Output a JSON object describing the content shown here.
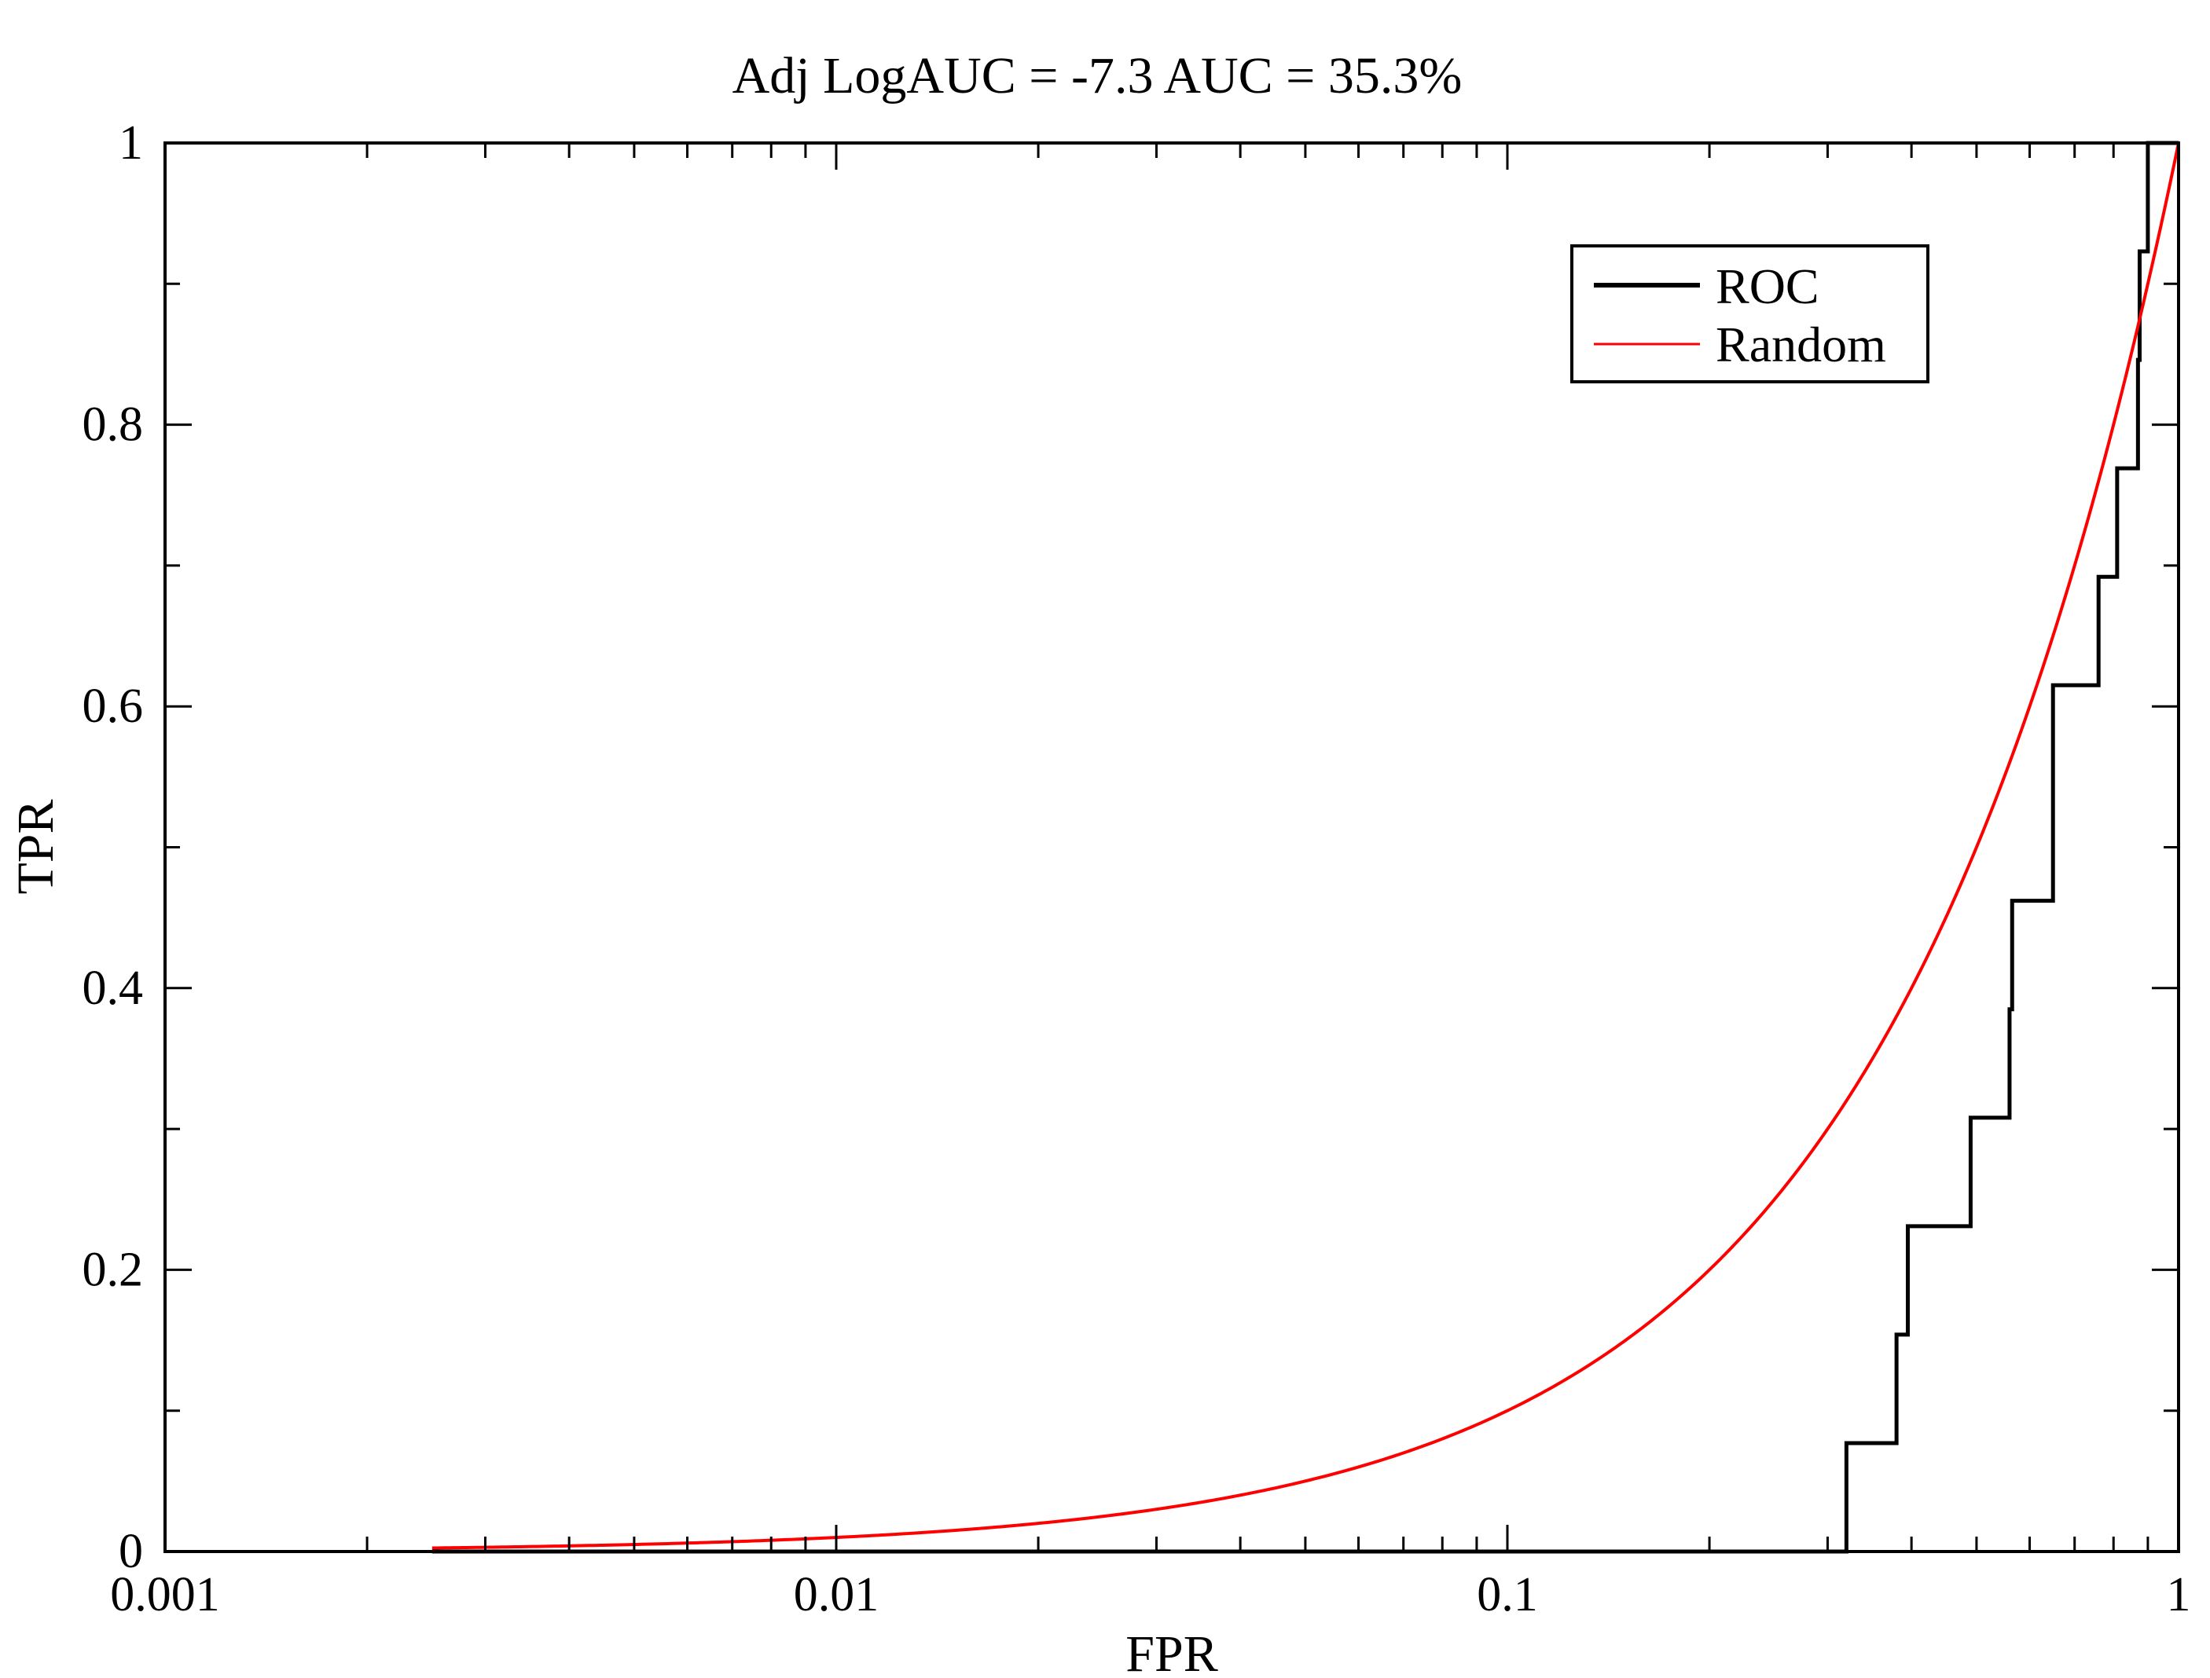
{
  "chart_data": {
    "type": "line",
    "title": "Adj LogAUC = -7.3  AUC = 35.3%",
    "xlabel": "FPR",
    "ylabel": "TPR",
    "x_scale": "log",
    "xlim": [
      0.001,
      1
    ],
    "ylim": [
      0,
      1
    ],
    "grid": false,
    "legend_position": "top-right",
    "x_ticks": [
      {
        "value": 0.001,
        "label": "0.001"
      },
      {
        "value": 0.01,
        "label": "0.01"
      },
      {
        "value": 0.1,
        "label": "0.1"
      },
      {
        "value": 1,
        "label": "1"
      }
    ],
    "y_ticks": [
      {
        "value": 0,
        "label": "0"
      },
      {
        "value": 0.2,
        "label": "0.2"
      },
      {
        "value": 0.4,
        "label": "0.4"
      },
      {
        "value": 0.6,
        "label": "0.6"
      },
      {
        "value": 0.8,
        "label": "0.8"
      },
      {
        "value": 1,
        "label": "1"
      }
    ],
    "series": [
      {
        "name": "ROC",
        "color": "#000000",
        "step": true,
        "points": [
          [
            0.0025,
            0
          ],
          [
            0.32,
            0
          ],
          [
            0.32,
            0.077
          ],
          [
            0.38,
            0.077
          ],
          [
            0.38,
            0.154
          ],
          [
            0.395,
            0.154
          ],
          [
            0.395,
            0.231
          ],
          [
            0.49,
            0.231
          ],
          [
            0.49,
            0.308
          ],
          [
            0.56,
            0.308
          ],
          [
            0.56,
            0.385
          ],
          [
            0.565,
            0.385
          ],
          [
            0.565,
            0.462
          ],
          [
            0.65,
            0.462
          ],
          [
            0.65,
            0.615
          ],
          [
            0.76,
            0.615
          ],
          [
            0.76,
            0.692
          ],
          [
            0.81,
            0.692
          ],
          [
            0.81,
            0.769
          ],
          [
            0.87,
            0.769
          ],
          [
            0.87,
            0.846
          ],
          [
            0.875,
            0.846
          ],
          [
            0.875,
            0.923
          ],
          [
            0.9,
            0.923
          ],
          [
            0.9,
            1
          ],
          [
            1,
            1
          ]
        ]
      },
      {
        "name": "Random",
        "color": "#ff0000",
        "equation": "TPR = FPR",
        "x_range": [
          0.0025,
          1
        ]
      }
    ]
  }
}
